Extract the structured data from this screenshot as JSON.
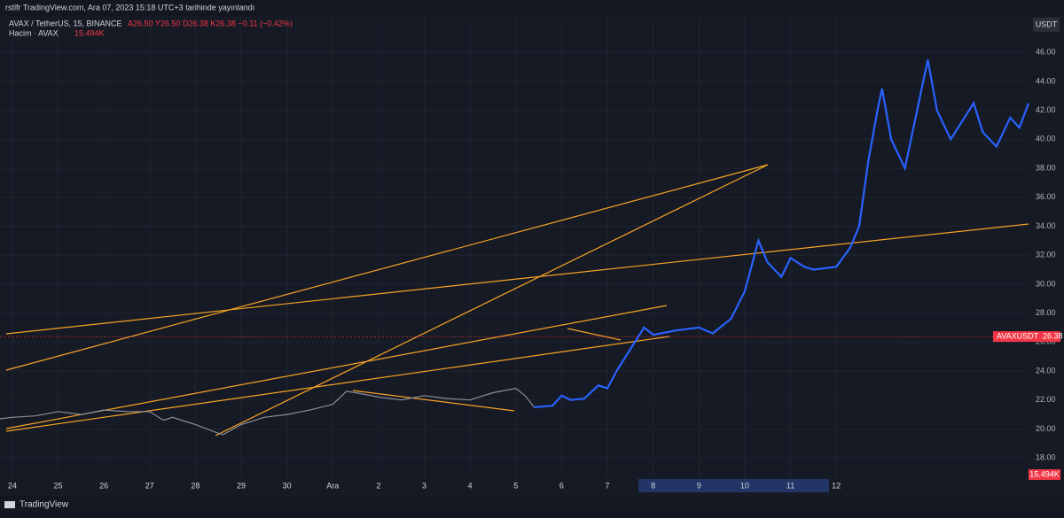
{
  "header": {
    "publisher": "rstlfr TradingView.com, Ara 07, 2023 15:18 UTC+3 tarihinde yayınlandı",
    "symbol": "AVAX / TetherUS, 15, BINANCE",
    "ohlc": "A26.50 Y26.50 D26.38 K26.38 −0.11 (−0.42%)",
    "volume_title": "Hacim · AVAX",
    "volume": "15.494K",
    "currency": "USDT",
    "brand": "TradingView"
  },
  "chart_data": {
    "type": "line",
    "xlim": [
      -0.27,
      22.2
    ],
    "ylim": [
      16.6,
      48.4
    ],
    "xticks": [
      {
        "value": 0,
        "label": "24"
      },
      {
        "value": 1,
        "label": "25"
      },
      {
        "value": 2,
        "label": "26"
      },
      {
        "value": 3,
        "label": "27"
      },
      {
        "value": 4,
        "label": "28"
      },
      {
        "value": 5,
        "label": "29"
      },
      {
        "value": 6,
        "label": "30"
      },
      {
        "value": 7,
        "label": "Ara"
      },
      {
        "value": 8,
        "label": "2"
      },
      {
        "value": 9,
        "label": "3"
      },
      {
        "value": 10,
        "label": "4"
      },
      {
        "value": 11,
        "label": "5"
      },
      {
        "value": 12,
        "label": "6"
      },
      {
        "value": 13,
        "label": "7"
      },
      {
        "value": 14,
        "label": "8"
      },
      {
        "value": 15,
        "label": "9"
      },
      {
        "value": 16,
        "label": "10"
      },
      {
        "value": 17,
        "label": "11"
      },
      {
        "value": 18,
        "label": "12"
      }
    ],
    "yticks": [
      {
        "value": 18,
        "label": "18.00"
      },
      {
        "value": 20,
        "label": "20.00"
      },
      {
        "value": 22,
        "label": "22.00"
      },
      {
        "value": 24,
        "label": "24.00"
      },
      {
        "value": 26,
        "label": "26.00"
      },
      {
        "value": 28,
        "label": "28.00"
      },
      {
        "value": 30,
        "label": "30.00"
      },
      {
        "value": 32,
        "label": "32.00"
      },
      {
        "value": 34,
        "label": "34.00"
      },
      {
        "value": 36,
        "label": "36.00"
      },
      {
        "value": 38,
        "label": "38.00"
      },
      {
        "value": 40,
        "label": "40.00"
      },
      {
        "value": 42,
        "label": "42.00"
      },
      {
        "value": 44,
        "label": "44.00"
      },
      {
        "value": 46,
        "label": "46.00"
      }
    ],
    "grid": true,
    "last_price_name": "AVAXUSDT",
    "last_price": 26.38,
    "series": [
      {
        "color": "#8a8e99",
        "x": [
          -0.27,
          0,
          0.5,
          1,
          1.5,
          2,
          2.5,
          3,
          3.3,
          3.5,
          4,
          4.5,
          4.6,
          5,
          5.5,
          6,
          6.5,
          7,
          7.3,
          7.5,
          8,
          8.5,
          9,
          9.5,
          10,
          10.5,
          11,
          11.2,
          11.4
        ],
        "values": [
          20.7,
          20.8,
          20.9,
          21.2,
          21.0,
          21.3,
          21.2,
          21.2,
          20.6,
          20.8,
          20.3,
          19.7,
          19.6,
          20.3,
          20.8,
          21.0,
          21.3,
          21.7,
          22.6,
          22.5,
          22.2,
          22.0,
          22.3,
          22.1,
          22.0,
          22.5,
          22.8,
          22.3,
          21.5
        ]
      },
      {
        "color": "#2962ff",
        "x": [
          11.4,
          11.8,
          12,
          12.2,
          12.5,
          12.8,
          13,
          13.2,
          13.5,
          13.8,
          14,
          14.5,
          15,
          15.3,
          15.7,
          16,
          16.3,
          16.5,
          16.8,
          17,
          17.3,
          17.5,
          18,
          18.3,
          18.5,
          18.7,
          18.9,
          19,
          19.2,
          19.5,
          19.7,
          20,
          20.2,
          20.5,
          21,
          21.2,
          21.5,
          21.8,
          22,
          22.2
        ],
        "values": [
          21.5,
          21.6,
          22.3,
          22.0,
          22.1,
          23.0,
          22.8,
          24.0,
          25.5,
          27.0,
          26.5,
          26.8,
          27.0,
          26.6,
          27.6,
          29.5,
          33.0,
          31.5,
          30.5,
          31.8,
          31.2,
          31.0,
          31.2,
          32.5,
          34.0,
          38.5,
          42.0,
          43.5,
          40.0,
          38.0,
          41.0,
          45.5,
          42.0,
          40.0,
          42.5,
          40.5,
          39.5,
          41.5,
          40.8,
          42.5
        ]
      }
    ]
  }
}
